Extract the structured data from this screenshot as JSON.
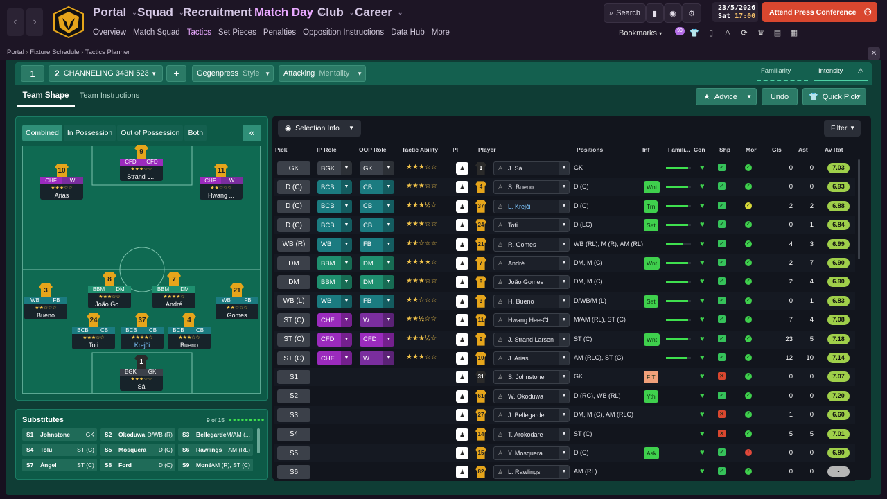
{
  "topnav": {
    "main": [
      {
        "label": "Portal",
        "active": false
      },
      {
        "label": "Squad",
        "active": false
      },
      {
        "label": "Recruitment",
        "active": false
      },
      {
        "label": "Match Day",
        "active": true
      },
      {
        "label": "Club",
        "active": false
      },
      {
        "label": "Career",
        "active": false
      }
    ],
    "sub": [
      "Overview",
      "Match Squad",
      "Tactics",
      "Set Pieces",
      "Penalties",
      "Opposition Instructions",
      "Data Hub",
      "More"
    ],
    "sub_active": "Tactics",
    "search_label": "Search",
    "date": "23/5/2026",
    "day": "Sat",
    "time": "17:00",
    "conference_label": "Attend Press Conference",
    "bookmarks_label": "Bookmarks",
    "bookmarks_badge": "99",
    "brand_color": "#e6a51b",
    "accent_color": "#e9a8ff",
    "alert_color": "#d9472f"
  },
  "breadcrumb": [
    "Portal",
    "Fixture Schedule",
    "Tactics Planner"
  ],
  "controls": {
    "tactic_slot_1": "1",
    "tactic_slot_2": "2",
    "tactic_name": "CHANNELING 343N 523",
    "add_label": "+",
    "style_value": "Gegenpress",
    "style_label": "Style",
    "mentality_value": "Attacking",
    "mentality_label": "Mentality",
    "familiarity_label": "Familiarity",
    "intensity_label": "Intensity",
    "tabs": [
      "Team Shape",
      "Team Instructions"
    ],
    "active_tab": "Team Shape",
    "advice_label": "Advice",
    "undo_label": "Undo",
    "quickpick_label": "Quick Pick"
  },
  "pitch_view": {
    "modes": [
      "Combined",
      "In Possession",
      "Out of Possession",
      "Both"
    ],
    "active_mode": "Combined",
    "collapse_label": "«"
  },
  "pitch_players": [
    {
      "num": "9",
      "r1": "CFD",
      "r2": "CFD",
      "stars": "★★★☆☆",
      "name": "Strand L...",
      "c1": "#9b2bbd",
      "c2": "#9b2bbd"
    },
    {
      "num": "10",
      "r1": "CHF",
      "r2": "W",
      "stars": "★★★☆☆",
      "name": "Arias",
      "c1": "#9b2bbd",
      "c2": "#7a2e9e"
    },
    {
      "num": "11",
      "r1": "CHF",
      "r2": "W",
      "stars": "★★☆☆☆",
      "name": "Hwang ...",
      "c1": "#9b2bbd",
      "c2": "#7a2e9e"
    },
    {
      "num": "8",
      "r1": "BBM",
      "r2": "DM",
      "stars": "★★★☆☆",
      "name": "João Go...",
      "c1": "#1f8f6f",
      "c2": "#1f8f6f"
    },
    {
      "num": "7",
      "r1": "BBM",
      "r2": "DM",
      "stars": "★★★★☆",
      "name": "André",
      "c1": "#1f8f6f",
      "c2": "#1f8f6f"
    },
    {
      "num": "3",
      "r1": "WB",
      "r2": "FB",
      "stars": "★★☆☆☆",
      "name": "Bueno",
      "c1": "#1b7b80",
      "c2": "#1b7b80"
    },
    {
      "num": "21",
      "r1": "WB",
      "r2": "FB",
      "stars": "★★☆☆☆",
      "name": "Gomes",
      "c1": "#1b7b80",
      "c2": "#1b7b80"
    },
    {
      "num": "24",
      "r1": "BCB",
      "r2": "CB",
      "stars": "★★★☆☆",
      "name": "Toti",
      "c1": "#1b7b80",
      "c2": "#1b7b80"
    },
    {
      "num": "37",
      "r1": "BCB",
      "r2": "CB",
      "stars": "★★★★☆",
      "name": "Krejči",
      "c1": "#1b7b80",
      "c2": "#1b7b80"
    },
    {
      "num": "4",
      "r1": "BCB",
      "r2": "CB",
      "stars": "★★★☆☆",
      "name": "Bueno",
      "c1": "#1b7b80",
      "c2": "#1b7b80"
    },
    {
      "num": "1",
      "r1": "BGK",
      "r2": "GK",
      "stars": "★★★☆☆",
      "name": "Sá",
      "c1": "#3b4049",
      "c2": "#3b4049"
    }
  ],
  "substitutes": {
    "title": "Substitutes",
    "count": "9 of 15",
    "items": [
      {
        "slot": "S1",
        "name": "Johnstone",
        "pos": "GK"
      },
      {
        "slot": "S2",
        "name": "Okoduwa",
        "pos": "D/WB (R)"
      },
      {
        "slot": "S3",
        "name": "Bellegarde",
        "pos": "M/AM (..."
      },
      {
        "slot": "S4",
        "name": "Tolu",
        "pos": "ST (C)"
      },
      {
        "slot": "S5",
        "name": "Mosquera",
        "pos": "D (C)"
      },
      {
        "slot": "S6",
        "name": "Rawlings",
        "pos": "AM (RL)"
      },
      {
        "slot": "S7",
        "name": "Ángel",
        "pos": "ST (C)"
      },
      {
        "slot": "S8",
        "name": "Ford",
        "pos": "D (C)"
      },
      {
        "slot": "S9",
        "name": "Moné",
        "pos": "AM (R), ST (C)"
      }
    ]
  },
  "table": {
    "selection_info_label": "Selection Info",
    "filter_label": "Filter",
    "headers": [
      "Pick",
      "IP Role",
      "OOP Role",
      "Tactic Ability",
      "PI",
      "Player",
      "Positions",
      "Inf",
      "Famili...",
      "Con",
      "Shp",
      "Mor",
      "Gls",
      "Ast",
      "Av Rat"
    ],
    "rows": [
      {
        "pos": "GK",
        "ip": "BGK",
        "oop": "GK",
        "stars": "★★★☆☆",
        "num": "1",
        "name": "J. Sá",
        "positions": "GK",
        "inf": "",
        "fam": 0.9,
        "gls": "0",
        "ast": "0",
        "rat": "7.03",
        "ipc": "#3b4049",
        "oopc": "#3b4049"
      },
      {
        "pos": "D (C)",
        "ip": "BCB",
        "oop": "CB",
        "stars": "★★★☆☆",
        "num": "4",
        "name": "S. Bueno",
        "positions": "D (C)",
        "inf": "Wnt",
        "fam": 0.9,
        "gls": "0",
        "ast": "0",
        "rat": "6.93",
        "ipc": "#1b7b80",
        "oopc": "#1b7b80"
      },
      {
        "pos": "D (C)",
        "ip": "BCB",
        "oop": "CB",
        "stars": "★★★½☆",
        "num": "37",
        "name": "L. Krejči",
        "positions": "D (C)",
        "inf": "Trn",
        "fam": 0.9,
        "gls": "2",
        "ast": "2",
        "rat": "6.88",
        "ipc": "#1b7b80",
        "oopc": "#1b7b80"
      },
      {
        "pos": "D (C)",
        "ip": "BCB",
        "oop": "CB",
        "stars": "★★★☆☆",
        "num": "24",
        "name": "Toti",
        "positions": "D (LC)",
        "inf": "Set",
        "fam": 0.9,
        "gls": "0",
        "ast": "1",
        "rat": "6.84",
        "ipc": "#1b7b80",
        "oopc": "#1b7b80"
      },
      {
        "pos": "WB (R)",
        "ip": "WB",
        "oop": "FB",
        "stars": "★★☆☆☆",
        "num": "21",
        "name": "R. Gomes",
        "positions": "WB (RL), M (R), AM (RL)",
        "inf": "",
        "fam": 0.7,
        "gls": "4",
        "ast": "3",
        "rat": "6.99",
        "ipc": "#1b7b80",
        "oopc": "#1b7b80"
      },
      {
        "pos": "DM",
        "ip": "BBM",
        "oop": "DM",
        "stars": "★★★★☆",
        "num": "7",
        "name": "André",
        "positions": "DM, M (C)",
        "inf": "Wnt",
        "fam": 0.9,
        "gls": "2",
        "ast": "7",
        "rat": "6.90",
        "ipc": "#1f8f6f",
        "oopc": "#1f8f6f"
      },
      {
        "pos": "DM",
        "ip": "BBM",
        "oop": "DM",
        "stars": "★★★☆☆",
        "num": "8",
        "name": "João Gomes",
        "positions": "DM, M (C)",
        "inf": "",
        "fam": 0.9,
        "gls": "2",
        "ast": "4",
        "rat": "6.90",
        "ipc": "#1f8f6f",
        "oopc": "#1f8f6f"
      },
      {
        "pos": "WB (L)",
        "ip": "WB",
        "oop": "FB",
        "stars": "★★☆☆☆",
        "num": "3",
        "name": "H. Bueno",
        "positions": "D/WB/M (L)",
        "inf": "Set",
        "fam": 0.9,
        "gls": "0",
        "ast": "1",
        "rat": "6.83",
        "ipc": "#1b7b80",
        "oopc": "#1b7b80"
      },
      {
        "pos": "ST (C)",
        "ip": "CHF",
        "oop": "W",
        "stars": "★★½☆☆",
        "num": "11",
        "name": "Hwang Hee-Ch...",
        "positions": "M/AM (RL), ST (C)",
        "inf": "",
        "fam": 0.9,
        "gls": "7",
        "ast": "4",
        "rat": "7.08",
        "ipc": "#9b2bbd",
        "oopc": "#7a2e9e"
      },
      {
        "pos": "ST (C)",
        "ip": "CFD",
        "oop": "CFD",
        "stars": "★★★½☆",
        "num": "9",
        "name": "J. Strand Larsen",
        "positions": "ST (C)",
        "inf": "Wnt",
        "fam": 0.9,
        "gls": "23",
        "ast": "5",
        "rat": "7.18",
        "ipc": "#9b2bbd",
        "oopc": "#9b2bbd"
      },
      {
        "pos": "ST (C)",
        "ip": "CHF",
        "oop": "W",
        "stars": "★★★☆☆",
        "num": "10",
        "name": "J. Arias",
        "positions": "AM (RLC), ST (C)",
        "inf": "",
        "fam": 0.85,
        "gls": "12",
        "ast": "10",
        "rat": "7.14",
        "ipc": "#9b2bbd",
        "oopc": "#7a2e9e"
      },
      {
        "pos": "S1",
        "ip": "",
        "oop": "",
        "stars": "",
        "num": "31",
        "name": "S. Johnstone",
        "positions": "GK",
        "inf": "FIT",
        "fam": 0,
        "gls": "0",
        "ast": "0",
        "rat": "7.07",
        "ipc": "",
        "oopc": ""
      },
      {
        "pos": "S2",
        "ip": "",
        "oop": "",
        "stars": "",
        "num": "61",
        "name": "W. Okoduwa",
        "positions": "D (RC), WB (RL)",
        "inf": "Yth",
        "fam": 0,
        "gls": "0",
        "ast": "0",
        "rat": "7.20",
        "ipc": "",
        "oopc": ""
      },
      {
        "pos": "S3",
        "ip": "",
        "oop": "",
        "stars": "",
        "num": "27",
        "name": "J. Bellegarde",
        "positions": "DM, M (C), AM (RLC)",
        "inf": "",
        "fam": 0,
        "gls": "1",
        "ast": "0",
        "rat": "6.60",
        "ipc": "",
        "oopc": ""
      },
      {
        "pos": "S4",
        "ip": "",
        "oop": "",
        "stars": "",
        "num": "14",
        "name": "T. Arokodare",
        "positions": "ST (C)",
        "inf": "",
        "fam": 0,
        "gls": "5",
        "ast": "5",
        "rat": "7.01",
        "ipc": "",
        "oopc": ""
      },
      {
        "pos": "S5",
        "ip": "",
        "oop": "",
        "stars": "",
        "num": "15",
        "name": "Y. Mosquera",
        "positions": "D (C)",
        "inf": "Ask",
        "fam": 0,
        "gls": "0",
        "ast": "0",
        "rat": "6.80",
        "ipc": "",
        "oopc": ""
      },
      {
        "pos": "S6",
        "ip": "",
        "oop": "",
        "stars": "",
        "num": "82",
        "name": "L. Rawlings",
        "positions": "AM (RL)",
        "inf": "",
        "fam": 0,
        "gls": "0",
        "ast": "0",
        "rat": "-",
        "ipc": "",
        "oopc": ""
      }
    ]
  }
}
